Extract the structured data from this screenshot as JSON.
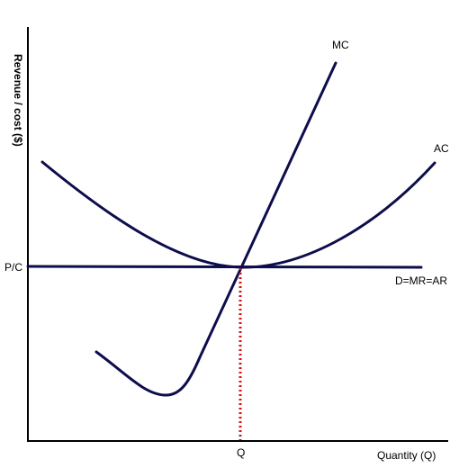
{
  "diagram": {
    "y_axis_label": "Revenue / cost ($)",
    "x_axis_label": "Quantity (Q)",
    "price_label": "P/C",
    "quantity_label": "Q",
    "curves": {
      "mc": "MC",
      "ac": "AC",
      "demand": "D=MR=AR"
    },
    "colors": {
      "curve": "#0d0d4d",
      "equilibrium_dashed": "#dd1111",
      "axes": "#000000"
    }
  }
}
